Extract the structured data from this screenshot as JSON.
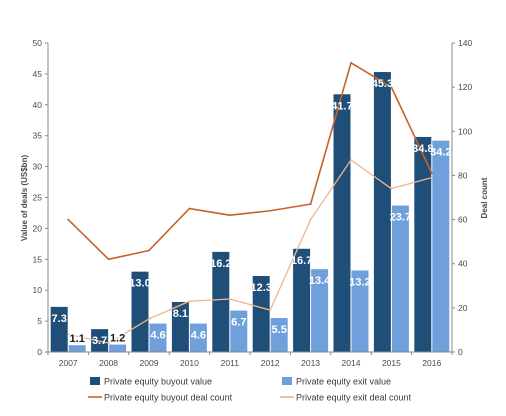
{
  "chart_data": {
    "type": "bar",
    "categories": [
      "2007",
      "2008",
      "2009",
      "2010",
      "2011",
      "2012",
      "2013",
      "2014",
      "2015",
      "2016"
    ],
    "series": [
      {
        "name": "Private equity buyout value",
        "kind": "bar",
        "axis": "left",
        "color": "#1f4e79",
        "values": [
          7.3,
          3.7,
          13.0,
          8.1,
          16.2,
          12.3,
          16.7,
          41.7,
          45.3,
          34.8
        ],
        "labels": [
          "7.3",
          "3.7",
          "13.0",
          "8.1",
          "16.2",
          "12.3",
          "16.7",
          "41.7",
          "45.3",
          "34.8"
        ]
      },
      {
        "name": "Private equity exit value",
        "kind": "bar",
        "axis": "left",
        "color": "#6fa0dc",
        "values": [
          1.1,
          1.2,
          4.6,
          4.6,
          6.7,
          5.5,
          13.4,
          13.2,
          23.7,
          34.2
        ],
        "labels": [
          "1.1",
          "1.2",
          "4.6",
          "4.6",
          "6.7",
          "5.5",
          "13.4",
          "13.2",
          "23.7",
          "34.2"
        ]
      },
      {
        "name": "Private equity buyout deal count",
        "kind": "line",
        "axis": "right",
        "color": "#c8622a",
        "style": "solid",
        "values": [
          60,
          42,
          46,
          65,
          62,
          64,
          67,
          131,
          120,
          81
        ]
      },
      {
        "name": "Private equity exit deal count",
        "kind": "line",
        "axis": "right",
        "color": "#f2b48c",
        "style": "solid",
        "values": [
          8,
          4,
          15,
          23,
          24,
          19,
          60,
          87,
          74,
          79
        ]
      }
    ],
    "ylabel": "Value of deals (US$bn)",
    "y2label": "Deal count",
    "ylim": [
      0,
      50
    ],
    "yticks": [
      0,
      5,
      10,
      15,
      20,
      25,
      30,
      35,
      40,
      45,
      50
    ],
    "y2lim": [
      0,
      140
    ],
    "y2ticks": [
      0,
      20,
      40,
      60,
      80,
      100,
      120,
      140
    ],
    "grid": false,
    "legend_position": "bottom",
    "legend_labels": {
      "buyout_value": "Private equity buyout value",
      "exit_value": "Private equity exit value",
      "buyout_count": "Private equity buyout deal count",
      "exit_count": "Private equity exit deal count"
    },
    "colors": {
      "label_on_dark": "#ffffff",
      "label_on_light": "#1a1a1a",
      "axis": "#8a8a8a"
    }
  }
}
